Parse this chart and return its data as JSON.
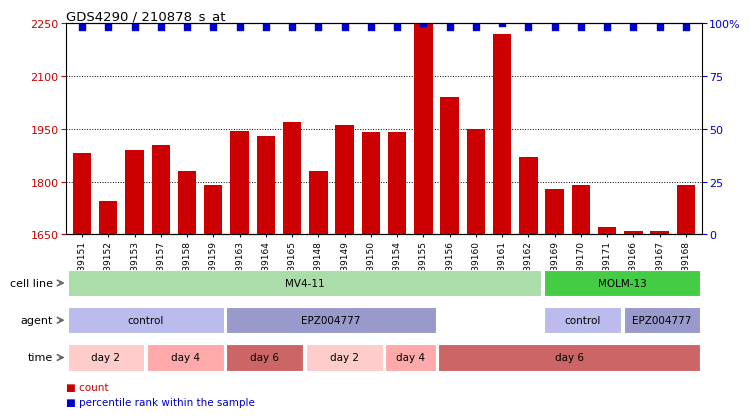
{
  "title": "GDS4290 / 210878_s_at",
  "samples": [
    "GSM739151",
    "GSM739152",
    "GSM739153",
    "GSM739157",
    "GSM739158",
    "GSM739159",
    "GSM739163",
    "GSM739164",
    "GSM739165",
    "GSM739148",
    "GSM739149",
    "GSM739150",
    "GSM739154",
    "GSM739155",
    "GSM739156",
    "GSM739160",
    "GSM739161",
    "GSM739162",
    "GSM739169",
    "GSM739170",
    "GSM739171",
    "GSM739166",
    "GSM739167",
    "GSM739168"
  ],
  "counts": [
    1880,
    1745,
    1890,
    1905,
    1830,
    1790,
    1945,
    1930,
    1970,
    1830,
    1960,
    1940,
    1940,
    2250,
    2040,
    1950,
    2220,
    1870,
    1780,
    1790,
    1670,
    1660,
    1660,
    1790
  ],
  "percentile_ranks": [
    98,
    98,
    98,
    98,
    98,
    98,
    98,
    98,
    98,
    98,
    98,
    98,
    98,
    100,
    98,
    98,
    100,
    98,
    98,
    98,
    98,
    98,
    98,
    98
  ],
  "bar_color": "#cc0000",
  "dot_color": "#0000cc",
  "ylim_left": [
    1650,
    2250
  ],
  "yticks_left": [
    1650,
    1800,
    1950,
    2100,
    2250
  ],
  "ylim_right": [
    0,
    100
  ],
  "yticks_right": [
    0,
    25,
    50,
    75,
    100
  ],
  "ylabel_left_color": "#cc0000",
  "ylabel_right_color": "#0000cc",
  "bg_color": "#ffffff",
  "xlabel_bg": "#dddddd",
  "cell_line_row": {
    "label": "cell line",
    "segments": [
      {
        "text": "MV4-11",
        "start": 0,
        "end": 18,
        "color": "#aaddaa"
      },
      {
        "text": "MOLM-13",
        "start": 18,
        "end": 24,
        "color": "#44cc44"
      }
    ]
  },
  "agent_row": {
    "label": "agent",
    "segments": [
      {
        "text": "control",
        "start": 0,
        "end": 6,
        "color": "#bbbbee"
      },
      {
        "text": "EPZ004777",
        "start": 6,
        "end": 14,
        "color": "#9999cc"
      },
      {
        "text": "control",
        "start": 18,
        "end": 21,
        "color": "#bbbbee"
      },
      {
        "text": "EPZ004777",
        "start": 21,
        "end": 24,
        "color": "#9999cc"
      }
    ]
  },
  "time_row": {
    "label": "time",
    "segments": [
      {
        "text": "day 2",
        "start": 0,
        "end": 3,
        "color": "#ffcccc"
      },
      {
        "text": "day 4",
        "start": 3,
        "end": 6,
        "color": "#ffaaaa"
      },
      {
        "text": "day 6",
        "start": 6,
        "end": 9,
        "color": "#cc6666"
      },
      {
        "text": "day 2",
        "start": 9,
        "end": 12,
        "color": "#ffcccc"
      },
      {
        "text": "day 4",
        "start": 12,
        "end": 14,
        "color": "#ffaaaa"
      },
      {
        "text": "day 6",
        "start": 14,
        "end": 24,
        "color": "#cc6666"
      }
    ]
  },
  "legend_items": [
    {
      "color": "#cc0000",
      "label": "count"
    },
    {
      "color": "#0000cc",
      "label": "percentile rank within the sample"
    }
  ]
}
